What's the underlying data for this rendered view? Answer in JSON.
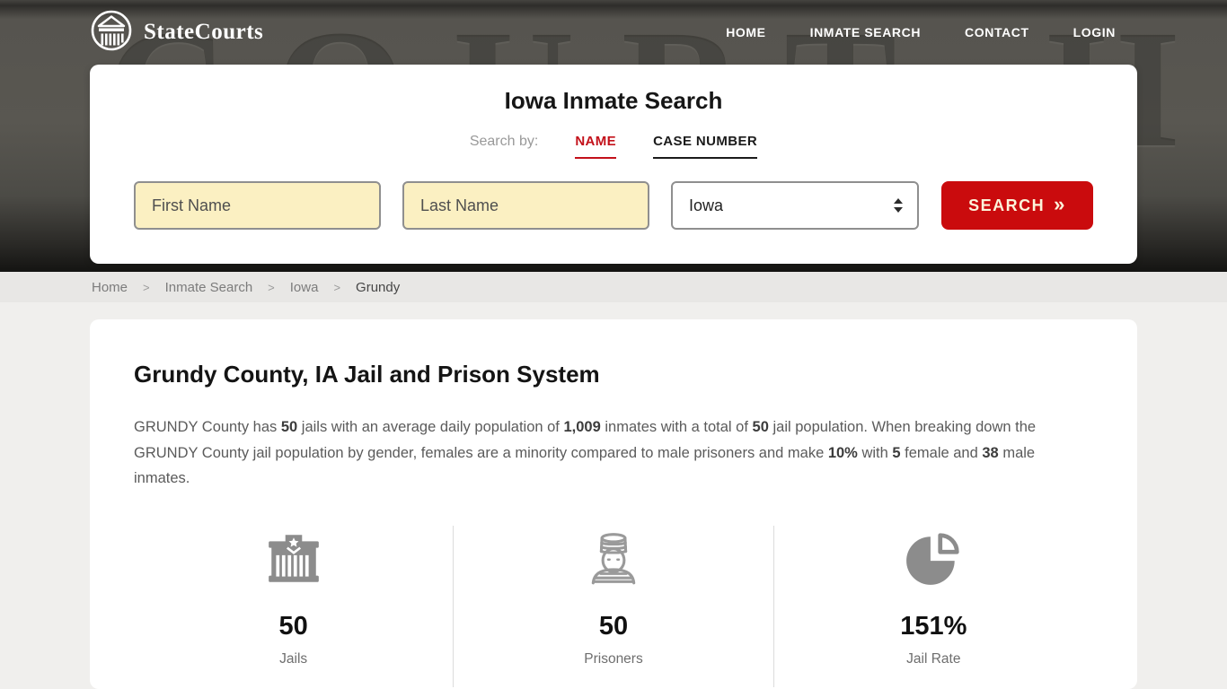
{
  "colors": {
    "accent-red": "#c3111a",
    "button-red": "#ca0b0d",
    "input-yellow": "#fbf0c2"
  },
  "header": {
    "brand": "StateCourts",
    "background_text": "COURT·HOUSE",
    "nav": [
      {
        "label": "HOME"
      },
      {
        "label": "INMATE SEARCH"
      },
      {
        "label": "CONTACT"
      },
      {
        "label": "LOGIN"
      }
    ]
  },
  "search_card": {
    "title": "Iowa Inmate Search",
    "search_by_label": "Search by:",
    "tabs": [
      {
        "label": "NAME",
        "active": true
      },
      {
        "label": "CASE NUMBER",
        "active": false
      }
    ],
    "first_name_placeholder": "First Name",
    "last_name_placeholder": "Last Name",
    "state_selected": "Iowa",
    "search_button_label": "SEARCH",
    "search_button_chevrons": "»"
  },
  "breadcrumb": {
    "separator": ">",
    "items": [
      "Home",
      "Inmate Search",
      "Iowa",
      "Grundy"
    ]
  },
  "content": {
    "heading": "Grundy County, IA Jail and Prison System",
    "paragraph_segments": [
      {
        "text": "GRUNDY County has ",
        "bold": false
      },
      {
        "text": "50",
        "bold": true
      },
      {
        "text": " jails with an average daily population of ",
        "bold": false
      },
      {
        "text": "1,009",
        "bold": true
      },
      {
        "text": " inmates with a total of ",
        "bold": false
      },
      {
        "text": "50",
        "bold": true
      },
      {
        "text": " jail population. When breaking down the GRUNDY County jail population by gender, females are a minority compared to male prisoners and make ",
        "bold": false
      },
      {
        "text": "10%",
        "bold": true
      },
      {
        "text": " with ",
        "bold": false
      },
      {
        "text": "5",
        "bold": true
      },
      {
        "text": " female and ",
        "bold": false
      },
      {
        "text": "38",
        "bold": true
      },
      {
        "text": " male inmates.",
        "bold": false
      }
    ]
  },
  "stats": [
    {
      "icon": "jail-building-icon",
      "value": "50",
      "label": "Jails"
    },
    {
      "icon": "prisoner-icon",
      "value": "50",
      "label": "Prisoners"
    },
    {
      "icon": "pie-chart-icon",
      "value": "151%",
      "label": "Jail Rate"
    }
  ]
}
